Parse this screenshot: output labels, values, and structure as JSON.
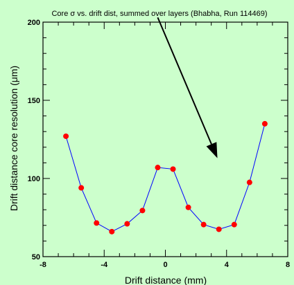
{
  "chart_data": {
    "type": "line",
    "title": "Core σ vs. drift dist, summed over layers (Bhabha, Run 114469)",
    "xlabel": "Drift distance (mm)",
    "ylabel": "Drift distance core resolution (μm)",
    "xlim": [
      -8,
      8
    ],
    "ylim": [
      50,
      200
    ],
    "x_ticks": [
      "-8",
      "-4",
      "0",
      "4",
      "8"
    ],
    "y_ticks": [
      "50",
      "100",
      "150",
      "200"
    ],
    "grid": false,
    "series": [
      {
        "x": [
          -6.5,
          -5.5,
          -4.5,
          -3.5,
          -2.5,
          -1.5,
          -0.5,
          0.5,
          1.5,
          2.5,
          3.5,
          4.5,
          5.5,
          6.5
        ],
        "y": [
          127,
          94,
          71.5,
          66,
          71,
          79.5,
          107,
          106,
          81.5,
          70.5,
          67.5,
          70.5,
          97.5,
          135
        ]
      }
    ],
    "colors": {
      "background": "#ccffcc",
      "line": "#0000ff",
      "marker": "#ff0000"
    },
    "annotations": [
      {
        "type": "arrow",
        "from": [
          -0.5,
          203
        ],
        "to": [
          3.4,
          113
        ]
      }
    ]
  }
}
